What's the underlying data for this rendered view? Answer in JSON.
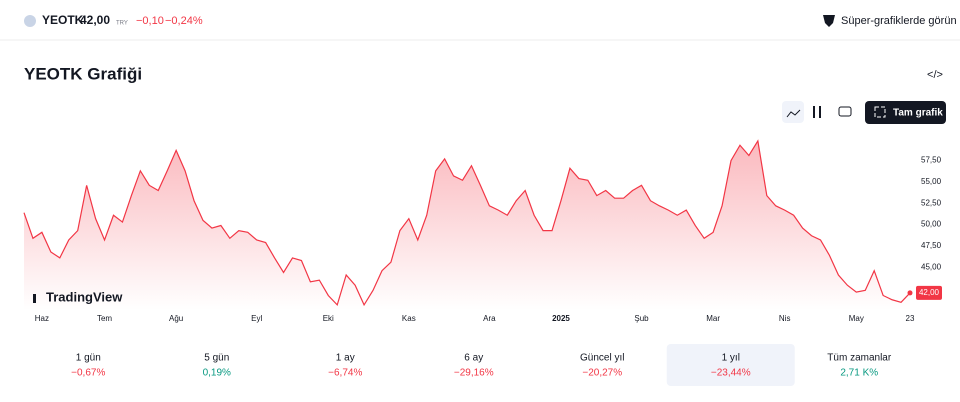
{
  "header": {
    "symbol": "YEOTK",
    "price": "42,00",
    "currency": "TRY",
    "change": "−0,10",
    "change_pct": "−0,24%",
    "super_link": "Süper-grafiklerde görün"
  },
  "title": "YEOTK Grafiği",
  "full_chart": "Tam grafik",
  "logo": "TradingView",
  "chart_data": {
    "type": "area",
    "color": "#f23645",
    "categories": [
      null,
      null,
      "Haz",
      null,
      null,
      null,
      null,
      null,
      null,
      "Tem",
      null,
      null,
      null,
      null,
      null,
      null,
      null,
      "Ağu",
      null,
      null,
      null,
      null,
      null,
      null,
      null,
      null,
      "Eyl",
      null,
      null,
      null,
      null,
      null,
      null,
      null,
      "Eki",
      null,
      null,
      null,
      null,
      null,
      null,
      null,
      null,
      "Kas",
      null,
      null,
      null,
      null,
      null,
      null,
      null,
      null,
      "Ara",
      null,
      null,
      null,
      null,
      null,
      null,
      null,
      "2025",
      null,
      null,
      null,
      null,
      null,
      null,
      null,
      null,
      "Şub",
      null,
      null,
      null,
      null,
      null,
      null,
      null,
      "Mar",
      null,
      null,
      null,
      null,
      null,
      null,
      null,
      "Nis",
      null,
      null,
      null,
      null,
      null,
      null,
      null,
      "May",
      null,
      null,
      null,
      null,
      null,
      "23"
    ],
    "values": [
      51.4,
      48.4,
      49.1,
      46.8,
      46.1,
      48.2,
      49.3,
      54.6,
      50.7,
      48.2,
      51.1,
      50.3,
      53.4,
      56.3,
      54.6,
      54.0,
      56.3,
      58.7,
      56.3,
      52.8,
      50.5,
      49.6,
      49.9,
      48.4,
      49.3,
      49.1,
      48.2,
      47.9,
      46.1,
      44.4,
      46.1,
      45.8,
      43.3,
      43.5,
      41.7,
      40.6,
      44.1,
      42.9,
      40.6,
      42.3,
      44.6,
      45.6,
      49.3,
      50.7,
      48.2,
      51.1,
      56.3,
      57.7,
      55.7,
      55.2,
      56.9,
      54.6,
      52.2,
      51.7,
      51.1,
      52.8,
      54.0,
      51.1,
      49.3,
      49.3,
      52.8,
      56.6,
      55.4,
      55.2,
      53.4,
      54.0,
      53.1,
      53.1,
      54.0,
      54.6,
      52.8,
      52.2,
      51.7,
      51.1,
      51.7,
      49.9,
      48.4,
      49.1,
      52.2,
      57.5,
      59.3,
      58.1,
      59.8,
      53.4,
      52.2,
      51.7,
      51.1,
      49.6,
      48.7,
      48.2,
      46.4,
      44.1,
      42.9,
      42.1,
      42.3,
      44.6,
      41.7,
      41.2,
      40.9,
      42.0
    ],
    "price_label": "42,00",
    "ylim": [
      40,
      60.5
    ],
    "yticks": [
      {
        "value": 45,
        "label": "45,00"
      },
      {
        "value": 47.5,
        "label": "47,50"
      },
      {
        "value": 50,
        "label": "50,00"
      },
      {
        "value": 52.5,
        "label": "52,50"
      },
      {
        "value": 55,
        "label": "55,00"
      },
      {
        "value": 57.5,
        "label": "57,50"
      }
    ]
  },
  "periods": [
    {
      "label": "1 gün",
      "change": "−0,67%",
      "trend": "down"
    },
    {
      "label": "5 gün",
      "change": "0,19%",
      "trend": "up"
    },
    {
      "label": "1 ay",
      "change": "−6,74%",
      "trend": "down"
    },
    {
      "label": "6 ay",
      "change": "−29,16%",
      "trend": "down"
    },
    {
      "label": "Güncel yıl",
      "change": "−20,27%",
      "trend": "down"
    },
    {
      "label": "1 yıl",
      "change": "−23,44%",
      "trend": "down",
      "selected": true
    },
    {
      "label": "Tüm zamanlar",
      "change": "2,71 K%",
      "trend": "up"
    }
  ]
}
